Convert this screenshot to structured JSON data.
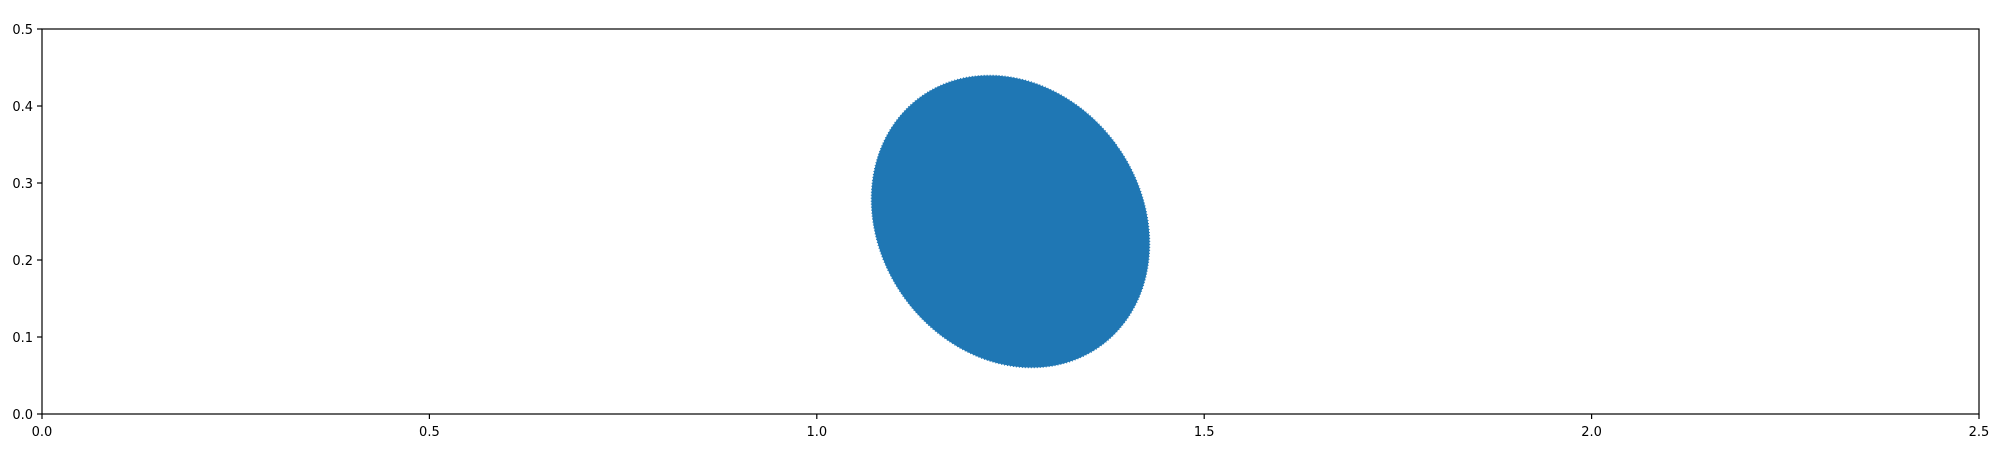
{
  "chart_data": {
    "type": "scatter",
    "title": "",
    "xlabel": "",
    "ylabel": "",
    "xlim": [
      0.0,
      2.5
    ],
    "ylim": [
      0.0,
      0.5
    ],
    "x_ticks": [
      "0.0",
      "0.5",
      "1.0",
      "1.5",
      "2.0",
      "2.5"
    ],
    "y_ticks": [
      "0.0",
      "0.1",
      "0.2",
      "0.3",
      "0.4",
      "0.5"
    ],
    "grid": false,
    "legend": "none",
    "shapes": [
      {
        "kind": "ellipse",
        "center": [
          1.25,
          0.25
        ],
        "semi_axis_a": 0.17,
        "semi_axis_b": 0.2,
        "angle_deg": 35,
        "fill": "#1f77b4",
        "edge": "#ffffff"
      }
    ]
  }
}
